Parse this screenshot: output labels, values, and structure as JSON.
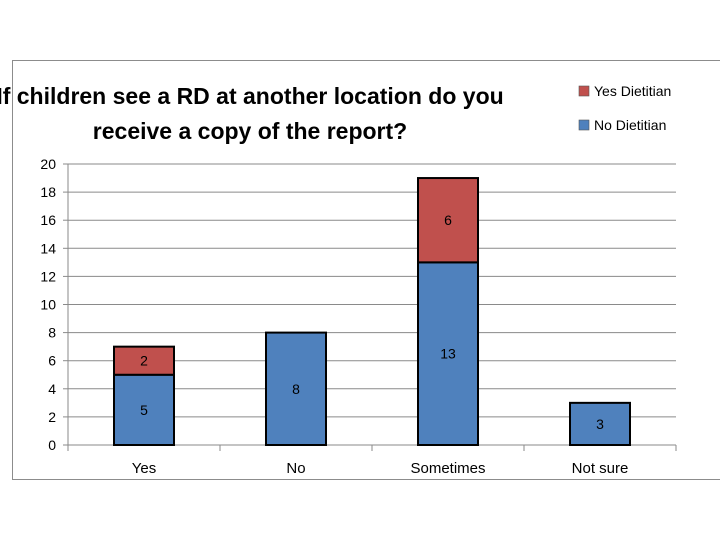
{
  "chart_data": {
    "type": "bar",
    "stacked": true,
    "title": "If children see a RD at another location do you receive a copy of the report?",
    "title_lines": [
      "If children see a RD at another location do you",
      "receive a copy of the report?"
    ],
    "categories": [
      "Yes",
      "No",
      "Sometimes",
      "Not sure"
    ],
    "series": [
      {
        "name": "No Dietitian",
        "values": [
          5,
          8,
          13,
          3
        ],
        "color": "#4f81bd"
      },
      {
        "name": "Yes Dietitian",
        "values": [
          2,
          0,
          6,
          0
        ],
        "color": "#c0504d"
      }
    ],
    "legend_order": [
      "Yes Dietitian",
      "No Dietitian"
    ],
    "legend_position": "top-right",
    "ylim": [
      0,
      20
    ],
    "yticks": [
      0,
      2,
      4,
      6,
      8,
      10,
      12,
      14,
      16,
      18,
      20
    ],
    "grid": true,
    "xlabel": "",
    "ylabel": ""
  }
}
